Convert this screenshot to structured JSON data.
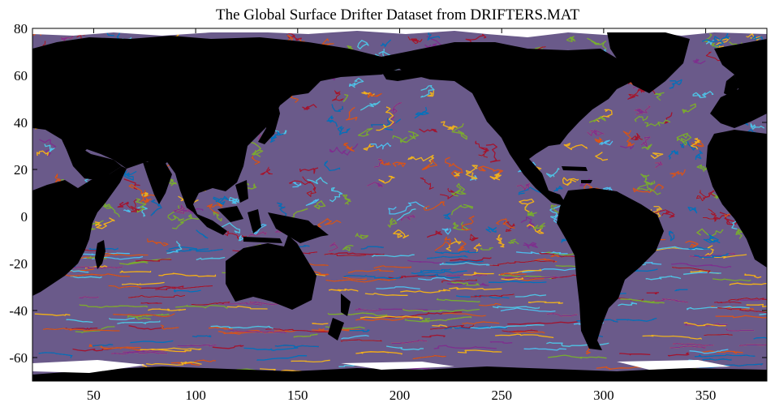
{
  "title": "The Global Surface Drifter Dataset from DRIFTERS.MAT",
  "map": {
    "xlim": [
      20,
      380
    ],
    "ylim": [
      -70,
      80
    ],
    "x_ticks": [
      {
        "value": 50,
        "label": "50"
      },
      {
        "value": 100,
        "label": "100"
      },
      {
        "value": 150,
        "label": "150"
      },
      {
        "value": 200,
        "label": "200"
      },
      {
        "value": 250,
        "label": "250"
      },
      {
        "value": 300,
        "label": "300"
      },
      {
        "value": 350,
        "label": "350"
      }
    ],
    "y_ticks": [
      {
        "value": 80,
        "label": "80"
      },
      {
        "value": 60,
        "label": "60"
      },
      {
        "value": 40,
        "label": "40"
      },
      {
        "value": 20,
        "label": "20"
      },
      {
        "value": 0,
        "label": "0"
      },
      {
        "value": -20,
        "label": "-20"
      },
      {
        "value": -40,
        "label": "-40"
      },
      {
        "value": -60,
        "label": "-60"
      }
    ],
    "land_color": "#000000",
    "ice_color": "#ffffff",
    "trajectory_colors": [
      "#0072bd",
      "#d95319",
      "#edb120",
      "#7e2f8e",
      "#77ac30",
      "#4dbeee",
      "#a2142f"
    ]
  }
}
